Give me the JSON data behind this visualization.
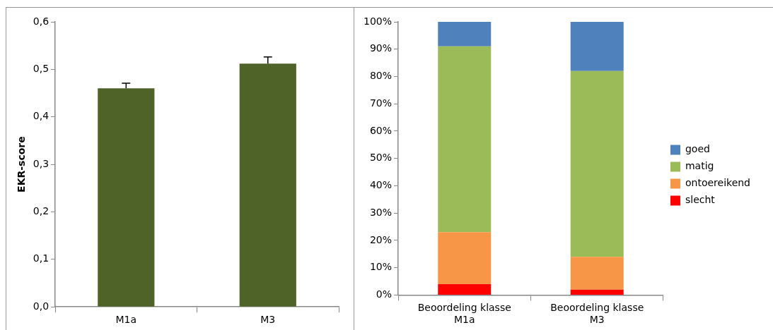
{
  "chart_data": [
    {
      "type": "bar",
      "ylabel": "EKR-score",
      "categories": [
        "M1a",
        "M3"
      ],
      "values": [
        0.46,
        0.512
      ],
      "color": "#4f6228",
      "errors": [
        [
          0.46,
          0.471
        ],
        [
          0.512,
          0.526
        ]
      ],
      "ylim": [
        0,
        0.6
      ],
      "yticks": [
        {
          "value": 0,
          "label": "0,0"
        },
        {
          "value": 0.1,
          "label": "0,1"
        },
        {
          "value": 0.2,
          "label": "0,2"
        },
        {
          "value": 0.3,
          "label": "0,3"
        },
        {
          "value": 0.4,
          "label": "0,4"
        },
        {
          "value": 0.5,
          "label": "0,5"
        },
        {
          "value": 0.6,
          "label": "0,6"
        }
      ],
      "grid": false,
      "legend": false
    },
    {
      "type": "bar",
      "stacked": true,
      "categories": [
        "Beoordeling klasse M1a",
        "Beoordeling klasse M3"
      ],
      "series": [
        {
          "name": "slecht",
          "color": "#ff0000",
          "values": [
            4,
            2
          ]
        },
        {
          "name": "ontoereikend",
          "color": "#f79646",
          "values": [
            19,
            12
          ]
        },
        {
          "name": "matig",
          "color": "#9bbb59",
          "values": [
            68,
            68
          ]
        },
        {
          "name": "goed",
          "color": "#4f81bd",
          "values": [
            9,
            18
          ]
        }
      ],
      "ylim": [
        0,
        100
      ],
      "yticks": [
        {
          "value": 0,
          "label": "0%"
        },
        {
          "value": 10,
          "label": "10%"
        },
        {
          "value": 20,
          "label": "20%"
        },
        {
          "value": 30,
          "label": "30%"
        },
        {
          "value": 40,
          "label": "40%"
        },
        {
          "value": 50,
          "label": "50%"
        },
        {
          "value": 60,
          "label": "60%"
        },
        {
          "value": 70,
          "label": "70%"
        },
        {
          "value": 80,
          "label": "80%"
        },
        {
          "value": 90,
          "label": "90%"
        },
        {
          "value": 100,
          "label": "100%"
        }
      ],
      "grid": false,
      "legend": "right"
    }
  ]
}
